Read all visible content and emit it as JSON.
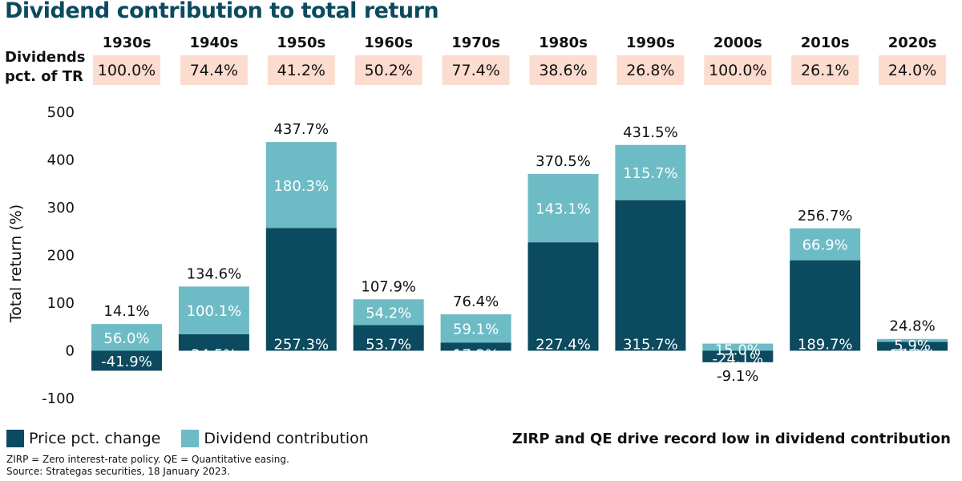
{
  "title": "Dividend contribution to total return",
  "dividend_row": {
    "label_line1": "Dividends",
    "label_line2": "pct. of TR",
    "values": [
      "100.0%",
      "74.4%",
      "41.2%",
      "50.2%",
      "77.4%",
      "38.6%",
      "26.8%",
      "100.0%",
      "26.1%",
      "24.0%"
    ]
  },
  "legend": {
    "price": "Price pct. change",
    "dividend": "Dividend contribution"
  },
  "annotation": "ZIRP and QE drive record low in dividend contribution",
  "footnotes": {
    "line1": "ZIRP = Zero interest-rate policy.  QE = Quantitative easing.",
    "line2": "Source: Strategas securities, 18 January 2023."
  },
  "colors": {
    "price": "#0b4a5f",
    "dividend": "#6dbbc5",
    "pct_box": "#fcdccf",
    "title": "#0b4a5f"
  },
  "chart_data": {
    "type": "bar",
    "stacked": true,
    "categories": [
      "1930s",
      "1940s",
      "1950s",
      "1960s",
      "1970s",
      "1980s",
      "1990s",
      "2000s",
      "2010s",
      "2020s"
    ],
    "series": [
      {
        "name": "Price pct. change",
        "values": [
          -41.9,
          34.5,
          257.3,
          53.7,
          17.2,
          227.4,
          315.7,
          -24.1,
          189.7,
          18.8
        ],
        "labels": [
          "-41.9%",
          "34.5%",
          "257.3%",
          "53.7%",
          "17.2%",
          "227.4%",
          "315.7%",
          "-24.1%",
          "189.7%",
          "18.8%"
        ]
      },
      {
        "name": "Dividend contribution",
        "values": [
          56.0,
          100.1,
          180.3,
          54.2,
          59.1,
          143.1,
          115.7,
          15.0,
          66.9,
          5.9
        ],
        "labels": [
          "56.0%",
          "100.1%",
          "180.3%",
          "54.2%",
          "59.1%",
          "143.1%",
          "115.7%",
          "15.0%",
          "66.9%",
          "5.9%"
        ]
      }
    ],
    "totals": [
      14.1,
      134.6,
      437.7,
      107.9,
      76.4,
      370.5,
      431.5,
      -9.1,
      256.7,
      24.8
    ],
    "total_labels": [
      "14.1%",
      "134.6%",
      "437.7%",
      "107.9%",
      "76.4%",
      "370.5%",
      "431.5%",
      "-9.1%",
      "256.7%",
      "24.8%"
    ],
    "ylabel": "Total return (%)",
    "ylim": [
      -100,
      500
    ],
    "yticks": [
      -100,
      0,
      100,
      200,
      300,
      400,
      500
    ],
    "ytick_labels": [
      "-100",
      "0",
      "100",
      "200",
      "300",
      "400",
      "500"
    ],
    "grid": false,
    "legend_position": "bottom-left"
  }
}
